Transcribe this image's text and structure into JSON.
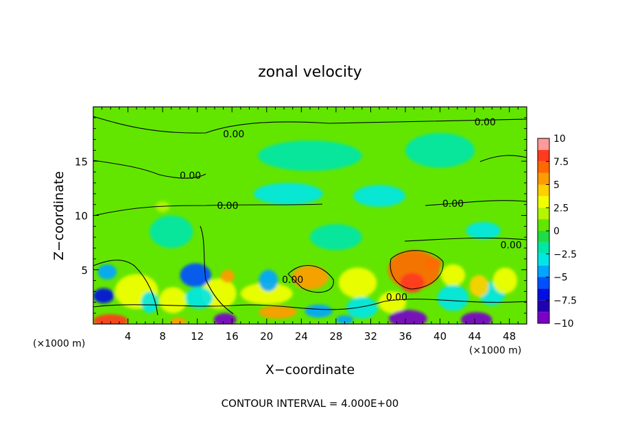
{
  "chart_data": {
    "type": "heatmap",
    "title": "zonal velocity",
    "xlabel": "X−coordinate",
    "ylabel": "Z−coordinate",
    "x_unit_left": "(×1000 m)",
    "x_unit_right": "(×1000 m)",
    "footer": "CONTOUR INTERVAL = 4.000E+00",
    "xlim": [
      0,
      50
    ],
    "ylim": [
      0,
      20
    ],
    "x_ticks": [
      4,
      8,
      12,
      16,
      20,
      24,
      28,
      32,
      36,
      40,
      44,
      48
    ],
    "y_ticks": [
      5,
      10,
      15
    ],
    "colorbar": {
      "min": -10,
      "max": 10,
      "ticks": [
        {
          "value": 10,
          "label": "10"
        },
        {
          "value": 7.5,
          "label": "7.5"
        },
        {
          "value": 5,
          "label": "5"
        },
        {
          "value": 2.5,
          "label": "2.5"
        },
        {
          "value": 0,
          "label": "0"
        },
        {
          "value": -2.5,
          "label": "−2.5"
        },
        {
          "value": -5,
          "label": "−5"
        },
        {
          "value": -7.5,
          "label": "−7.5"
        },
        {
          "value": -10,
          "label": "−10"
        }
      ],
      "bands": [
        {
          "from": 8.75,
          "to": 10,
          "color": "#ff9a9a"
        },
        {
          "from": 7.5,
          "to": 8.75,
          "color": "#ff3b1e"
        },
        {
          "from": 6.25,
          "to": 7.5,
          "color": "#ff6a00"
        },
        {
          "from": 5,
          "to": 6.25,
          "color": "#ff9c00"
        },
        {
          "from": 3.75,
          "to": 5,
          "color": "#ffd000"
        },
        {
          "from": 2.5,
          "to": 3.75,
          "color": "#f2ff00"
        },
        {
          "from": 1.25,
          "to": 2.5,
          "color": "#b4f500"
        },
        {
          "from": 0,
          "to": 1.25,
          "color": "#62e600"
        },
        {
          "from": -1.25,
          "to": 0,
          "color": "#1fdc46"
        },
        {
          "from": -2.5,
          "to": -1.25,
          "color": "#00e6a8"
        },
        {
          "from": -3.75,
          "to": -2.5,
          "color": "#00e6e6"
        },
        {
          "from": -5,
          "to": -3.75,
          "color": "#00a6ff"
        },
        {
          "from": -6.25,
          "to": -5,
          "color": "#0050ff"
        },
        {
          "from": -7.5,
          "to": -6.25,
          "color": "#0010e0"
        },
        {
          "from": -8.75,
          "to": -7.5,
          "color": "#2000b0"
        },
        {
          "from": -10,
          "to": -8.75,
          "color": "#7a00c8"
        }
      ]
    },
    "contour_labels": [
      {
        "text": "0.00",
        "x": 16.2,
        "y": 17.5
      },
      {
        "text": "0.00",
        "x": 45.2,
        "y": 18.6
      },
      {
        "text": "0.00",
        "x": 11.2,
        "y": 13.7
      },
      {
        "text": "0.00",
        "x": 15.5,
        "y": 10.9
      },
      {
        "text": "0.00",
        "x": 41.5,
        "y": 11.1
      },
      {
        "text": "0.00",
        "x": 48.2,
        "y": 7.3
      },
      {
        "text": "0.00",
        "x": 23.0,
        "y": 4.1
      },
      {
        "text": "0.00",
        "x": 35.0,
        "y": 2.5
      }
    ],
    "features": [
      {
        "x": 37.0,
        "y": 5.0,
        "value": 6.5,
        "rx": 3.0,
        "ry": 1.8
      },
      {
        "x": 36.8,
        "y": 3.8,
        "value": 7.8,
        "rx": 1.4,
        "ry": 0.9
      },
      {
        "x": 39.3,
        "y": 5.6,
        "value": 6.8,
        "rx": 0.9,
        "ry": 0.5
      },
      {
        "x": 25.0,
        "y": 4.3,
        "value": 5.5,
        "rx": 2.1,
        "ry": 1.1
      },
      {
        "x": 15.5,
        "y": 4.4,
        "value": 5.5,
        "rx": 0.8,
        "ry": 0.6
      },
      {
        "x": 21.3,
        "y": 1.1,
        "value": 5.5,
        "rx": 2.2,
        "ry": 0.6
      },
      {
        "x": 20.0,
        "y": 2.8,
        "value": 3.2,
        "rx": 3.0,
        "ry": 1.0
      },
      {
        "x": 2.0,
        "y": 0.3,
        "value": 8.5,
        "rx": 2.0,
        "ry": 0.6
      },
      {
        "x": 9.8,
        "y": 0.2,
        "value": 6.0,
        "rx": 0.9,
        "ry": 0.4
      },
      {
        "x": 5.0,
        "y": 3.0,
        "value": 3.0,
        "rx": 2.5,
        "ry": 1.6
      },
      {
        "x": 9.2,
        "y": 2.2,
        "value": 3.0,
        "rx": 1.6,
        "ry": 1.2
      },
      {
        "x": 44.5,
        "y": 3.5,
        "value": 3.8,
        "rx": 1.1,
        "ry": 1.0
      },
      {
        "x": 47.5,
        "y": 4.0,
        "value": 3.2,
        "rx": 1.4,
        "ry": 1.2
      },
      {
        "x": 14.5,
        "y": 2.8,
        "value": 3.2,
        "rx": 2.0,
        "ry": 1.4
      },
      {
        "x": 34.5,
        "y": 2.0,
        "value": 3.0,
        "rx": 1.6,
        "ry": 1.0
      },
      {
        "x": 30.5,
        "y": 3.8,
        "value": 2.5,
        "rx": 2.2,
        "ry": 1.4
      },
      {
        "x": 41.5,
        "y": 4.5,
        "value": 2.8,
        "rx": 1.4,
        "ry": 1.0
      },
      {
        "x": 1.2,
        "y": 2.6,
        "value": -6.5,
        "rx": 1.2,
        "ry": 0.7
      },
      {
        "x": 1.6,
        "y": 4.8,
        "value": -4.2,
        "rx": 1.1,
        "ry": 0.7
      },
      {
        "x": 11.8,
        "y": 4.5,
        "value": -5.5,
        "rx": 1.8,
        "ry": 1.1
      },
      {
        "x": 12.2,
        "y": 2.4,
        "value": -3.5,
        "rx": 1.6,
        "ry": 1.0
      },
      {
        "x": 15.2,
        "y": 0.4,
        "value": -9.5,
        "rx": 1.3,
        "ry": 0.6
      },
      {
        "x": 20.2,
        "y": 4.0,
        "value": -4.5,
        "rx": 1.1,
        "ry": 1.0
      },
      {
        "x": 26.0,
        "y": 1.2,
        "value": -5.0,
        "rx": 1.6,
        "ry": 0.6
      },
      {
        "x": 29.0,
        "y": 0.4,
        "value": -4.0,
        "rx": 1.0,
        "ry": 0.4
      },
      {
        "x": 36.3,
        "y": 0.5,
        "value": -9.5,
        "rx": 2.2,
        "ry": 0.8
      },
      {
        "x": 44.2,
        "y": 0.4,
        "value": -9.5,
        "rx": 1.8,
        "ry": 0.7
      },
      {
        "x": 41.5,
        "y": 2.4,
        "value": -3.5,
        "rx": 1.8,
        "ry": 1.2
      },
      {
        "x": 31.0,
        "y": 1.5,
        "value": -3.0,
        "rx": 1.8,
        "ry": 1.0
      },
      {
        "x": 6.5,
        "y": 2.0,
        "value": -3.2,
        "rx": 1.0,
        "ry": 1.0
      },
      {
        "x": 46.0,
        "y": 2.8,
        "value": -3.0,
        "rx": 1.5,
        "ry": 1.1
      },
      {
        "x": 22.5,
        "y": 12.0,
        "value": -3.0,
        "rx": 4.0,
        "ry": 1.0
      },
      {
        "x": 33.0,
        "y": 11.8,
        "value": -2.6,
        "rx": 3.0,
        "ry": 1.0
      },
      {
        "x": 45.0,
        "y": 8.6,
        "value": -3.0,
        "rx": 2.0,
        "ry": 0.8
      },
      {
        "x": 25.0,
        "y": 15.5,
        "value": -2.2,
        "rx": 6.0,
        "ry": 1.4
      },
      {
        "x": 40.0,
        "y": 16.0,
        "value": -2.2,
        "rx": 4.0,
        "ry": 1.6
      },
      {
        "x": 9.0,
        "y": 8.5,
        "value": -2.4,
        "rx": 2.5,
        "ry": 1.5
      },
      {
        "x": 28.0,
        "y": 8.0,
        "value": -2.0,
        "rx": 3.0,
        "ry": 1.2
      },
      {
        "x": 10.5,
        "y": 14.0,
        "value": 1.2,
        "rx": 2.5,
        "ry": 1.2
      },
      {
        "x": 8.0,
        "y": 10.8,
        "value": 2.4,
        "rx": 0.8,
        "ry": 0.5
      },
      {
        "x": 30.0,
        "y": 19.0,
        "value": 1.0,
        "rx": 8.0,
        "ry": 0.8
      }
    ]
  }
}
